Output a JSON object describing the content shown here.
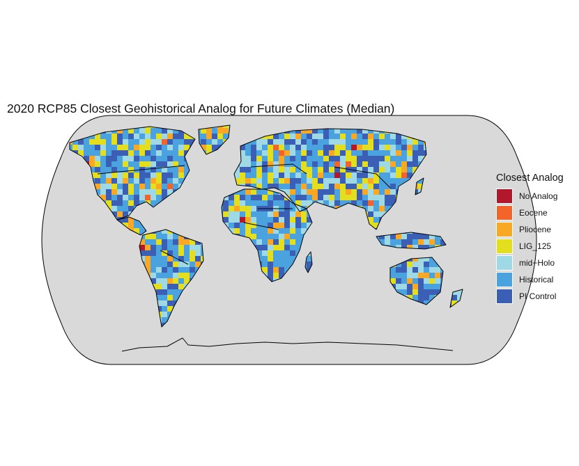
{
  "title": "2020 RCP85 Closest Geohistorical Analog for Future Climates (Median)",
  "legend": {
    "title": "Closest Analog",
    "items": [
      {
        "label": "No Analog",
        "color": "#b2182b"
      },
      {
        "label": "Eocene",
        "color": "#f2642a"
      },
      {
        "label": "Pliocene",
        "color": "#f9a825"
      },
      {
        "label": "LIG_125",
        "color": "#e3df1f"
      },
      {
        "label": "mid−Holo",
        "color": "#9fd9e6"
      },
      {
        "label": "Historical",
        "color": "#4aa3df"
      },
      {
        "label": "PI Control",
        "color": "#3a5fb5"
      }
    ]
  },
  "map": {
    "projection": "Robinson",
    "ocean_color": "#d9d9d9",
    "outline_color": "#000000"
  }
}
